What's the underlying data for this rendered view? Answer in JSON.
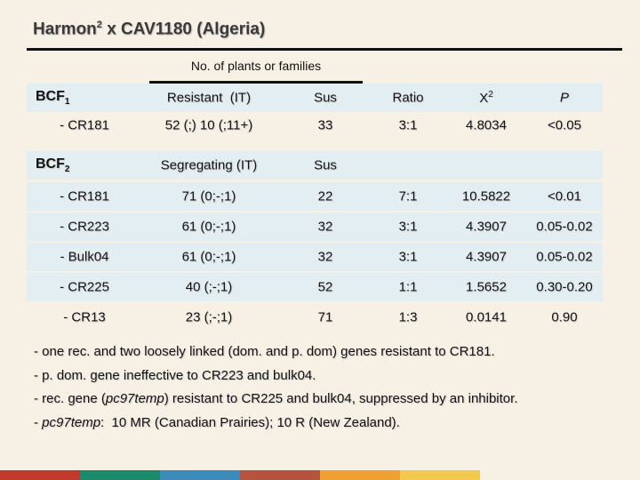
{
  "title": {
    "main": "Harmon",
    "sup": "2",
    "rest": " x CAV1180 (Algeria)"
  },
  "table": {
    "group_header": "No. of plants or families",
    "rows": [
      {
        "shaded": true,
        "cells": [
          {
            "text": "BCF",
            "sub": "1"
          },
          "Resistant  (IT)",
          "Sus",
          "Ratio",
          {
            "text": "X",
            "sup": "2"
          },
          {
            "text": "P",
            "italic": true
          }
        ]
      },
      {
        "shaded": false,
        "cells": [
          "- CR181",
          "52 (;) 10 (;11+)",
          "33",
          "3:1",
          "4.8034",
          "<0.05"
        ]
      },
      {
        "shaded": true,
        "cells": [
          {
            "text": "BCF",
            "sub": "2"
          },
          "Segregating (IT)",
          "Sus"
        ]
      },
      {
        "shaded": true,
        "cells": [
          "- CR181",
          "71 (0;-;1)",
          "22",
          "7:1",
          "10.5822",
          "<0.01"
        ]
      },
      {
        "shaded": true,
        "cells": [
          "- CR223",
          "61 (0;-;1)",
          "32",
          "3:1",
          "4.3907",
          "0.05-0.02"
        ]
      },
      {
        "shaded": true,
        "cells": [
          "- Bulk04",
          "61 (0;-;1)",
          "32",
          "3:1",
          "4.3907",
          "0.05-0.02"
        ]
      },
      {
        "shaded": true,
        "cells": [
          "- CR225",
          "40 (;-;1)",
          "52",
          "1:1",
          "1.5652",
          "0.30-0.20"
        ]
      },
      {
        "shaded": false,
        "cells": [
          "- CR13",
          "23 (;-;1)",
          "71",
          "1:3",
          "0.0141",
          "0.90"
        ]
      }
    ]
  },
  "notes": [
    [
      "- one rec. and two loosely linked (dom. and p. dom) genes resistant to CR181."
    ],
    [
      "- p. dom. gene ineffective to CR223 and bulk04."
    ],
    [
      "- rec. gene (",
      {
        "text": "pc97temp",
        "italic": true
      },
      ") resistant to CR225 and bulk04, suppressed by an inhibitor."
    ],
    [
      "- ",
      {
        "text": "pc97temp",
        "italic": true
      },
      ":  10 MR (Canadian Prairies); 10 R (New Zealand)."
    ]
  ]
}
